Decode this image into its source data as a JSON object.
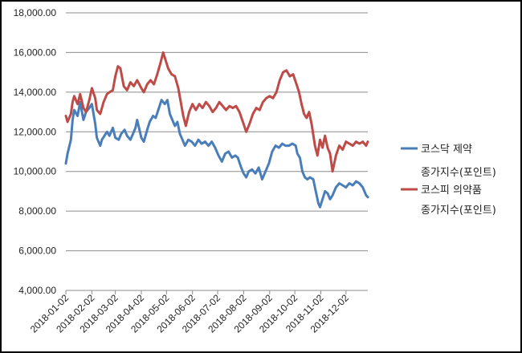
{
  "chart_data": {
    "type": "line",
    "ylim": [
      4000,
      18000
    ],
    "y_ticks": [
      "4,000.00",
      "6,000.00",
      "8,000.00",
      "10,000.00",
      "12,000.00",
      "14,000.00",
      "16,000.00",
      "18,000.00"
    ],
    "y_tick_values": [
      4000,
      6000,
      8000,
      10000,
      12000,
      14000,
      16000,
      18000
    ],
    "x_range": [
      "2018-01-02",
      "2018-12-28"
    ],
    "x_ticks": [
      "2018-01-02",
      "2018-02-02",
      "2018-03-02",
      "2018-04-02",
      "2018-05-02",
      "2018-06-02",
      "2018-07-02",
      "2018-08-02",
      "2018-09-02",
      "2018-10-02",
      "2018-11-02",
      "2018-12-02"
    ],
    "grid": "horizontal",
    "legend_position": "right",
    "series": [
      {
        "name": "코스닥 제약 종가지수(포인트)",
        "color": "#4a7ebb",
        "points": [
          [
            "2018-01-02",
            10400
          ],
          [
            "2018-01-04",
            10900
          ],
          [
            "2018-01-08",
            11600
          ],
          [
            "2018-01-10",
            12600
          ],
          [
            "2018-01-12",
            13100
          ],
          [
            "2018-01-16",
            12800
          ],
          [
            "2018-01-19",
            13500
          ],
          [
            "2018-01-23",
            12600
          ],
          [
            "2018-01-26",
            13000
          ],
          [
            "2018-01-30",
            13200
          ],
          [
            "2018-02-02",
            13400
          ],
          [
            "2018-02-06",
            12400
          ],
          [
            "2018-02-08",
            11700
          ],
          [
            "2018-02-12",
            11300
          ],
          [
            "2018-02-14",
            11600
          ],
          [
            "2018-02-20",
            12000
          ],
          [
            "2018-02-23",
            11800
          ],
          [
            "2018-02-27",
            12200
          ],
          [
            "2018-03-02",
            11700
          ],
          [
            "2018-03-06",
            11600
          ],
          [
            "2018-03-09",
            11900
          ],
          [
            "2018-03-13",
            12100
          ],
          [
            "2018-03-16",
            11800
          ],
          [
            "2018-03-20",
            11600
          ],
          [
            "2018-03-23",
            11900
          ],
          [
            "2018-03-26",
            12200
          ],
          [
            "2018-03-28",
            12600
          ],
          [
            "2018-04-02",
            11700
          ],
          [
            "2018-04-05",
            11500
          ],
          [
            "2018-04-09",
            12100
          ],
          [
            "2018-04-12",
            12500
          ],
          [
            "2018-04-16",
            12800
          ],
          [
            "2018-04-19",
            12700
          ],
          [
            "2018-04-23",
            13200
          ],
          [
            "2018-04-26",
            13600
          ],
          [
            "2018-04-30",
            13400
          ],
          [
            "2018-05-03",
            13600
          ],
          [
            "2018-05-06",
            12900
          ],
          [
            "2018-05-09",
            12600
          ],
          [
            "2018-05-12",
            12300
          ],
          [
            "2018-05-15",
            12500
          ],
          [
            "2018-05-18",
            11900
          ],
          [
            "2018-05-21",
            11600
          ],
          [
            "2018-05-24",
            11300
          ],
          [
            "2018-05-28",
            11600
          ],
          [
            "2018-06-01",
            11500
          ],
          [
            "2018-06-05",
            11300
          ],
          [
            "2018-06-09",
            11600
          ],
          [
            "2018-06-13",
            11400
          ],
          [
            "2018-06-17",
            11500
          ],
          [
            "2018-06-21",
            11300
          ],
          [
            "2018-06-25",
            11500
          ],
          [
            "2018-06-29",
            11200
          ],
          [
            "2018-07-03",
            10800
          ],
          [
            "2018-07-07",
            10500
          ],
          [
            "2018-07-11",
            10900
          ],
          [
            "2018-07-15",
            11000
          ],
          [
            "2018-07-19",
            10700
          ],
          [
            "2018-07-23",
            10800
          ],
          [
            "2018-07-26",
            10700
          ],
          [
            "2018-07-30",
            10200
          ],
          [
            "2018-08-02",
            9900
          ],
          [
            "2018-08-05",
            9700
          ],
          [
            "2018-08-08",
            10000
          ],
          [
            "2018-08-12",
            10100
          ],
          [
            "2018-08-16",
            9900
          ],
          [
            "2018-08-20",
            10200
          ],
          [
            "2018-08-24",
            9600
          ],
          [
            "2018-08-28",
            10000
          ],
          [
            "2018-09-01",
            10400
          ],
          [
            "2018-09-05",
            11000
          ],
          [
            "2018-09-09",
            11300
          ],
          [
            "2018-09-13",
            11200
          ],
          [
            "2018-09-17",
            11400
          ],
          [
            "2018-09-21",
            11300
          ],
          [
            "2018-09-25",
            11300
          ],
          [
            "2018-09-29",
            11400
          ],
          [
            "2018-10-03",
            11300
          ],
          [
            "2018-10-05",
            10900
          ],
          [
            "2018-10-08",
            10700
          ],
          [
            "2018-10-11",
            10000
          ],
          [
            "2018-10-14",
            9700
          ],
          [
            "2018-10-17",
            9600
          ],
          [
            "2018-10-20",
            9700
          ],
          [
            "2018-10-24",
            9600
          ],
          [
            "2018-10-27",
            9000
          ],
          [
            "2018-10-30",
            8400
          ],
          [
            "2018-11-01",
            8200
          ],
          [
            "2018-11-04",
            8600
          ],
          [
            "2018-11-07",
            9000
          ],
          [
            "2018-11-10",
            8900
          ],
          [
            "2018-11-13",
            8600
          ],
          [
            "2018-11-16",
            8800
          ],
          [
            "2018-11-20",
            9200
          ],
          [
            "2018-11-24",
            9400
          ],
          [
            "2018-11-28",
            9300
          ],
          [
            "2018-12-02",
            9200
          ],
          [
            "2018-12-06",
            9400
          ],
          [
            "2018-12-10",
            9300
          ],
          [
            "2018-12-14",
            9500
          ],
          [
            "2018-12-18",
            9400
          ],
          [
            "2018-12-22",
            9200
          ],
          [
            "2018-12-26",
            8800
          ],
          [
            "2018-12-28",
            8700
          ]
        ]
      },
      {
        "name": "코스피 의약품 종가지수(포인트)",
        "color": "#be4b48",
        "points": [
          [
            "2018-01-02",
            12800
          ],
          [
            "2018-01-04",
            12500
          ],
          [
            "2018-01-08",
            12900
          ],
          [
            "2018-01-10",
            13500
          ],
          [
            "2018-01-12",
            13800
          ],
          [
            "2018-01-16",
            13400
          ],
          [
            "2018-01-19",
            13900
          ],
          [
            "2018-01-23",
            13200
          ],
          [
            "2018-01-26",
            13000
          ],
          [
            "2018-01-30",
            13600
          ],
          [
            "2018-02-02",
            14200
          ],
          [
            "2018-02-06",
            13700
          ],
          [
            "2018-02-08",
            13100
          ],
          [
            "2018-02-12",
            12900
          ],
          [
            "2018-02-16",
            13500
          ],
          [
            "2018-02-20",
            13900
          ],
          [
            "2018-02-23",
            14000
          ],
          [
            "2018-02-27",
            14100
          ],
          [
            "2018-03-02",
            14800
          ],
          [
            "2018-03-05",
            15300
          ],
          [
            "2018-03-08",
            15200
          ],
          [
            "2018-03-12",
            14300
          ],
          [
            "2018-03-16",
            14100
          ],
          [
            "2018-03-20",
            14500
          ],
          [
            "2018-03-24",
            14300
          ],
          [
            "2018-03-28",
            14600
          ],
          [
            "2018-04-02",
            14200
          ],
          [
            "2018-04-05",
            14000
          ],
          [
            "2018-04-09",
            14400
          ],
          [
            "2018-04-13",
            14600
          ],
          [
            "2018-04-17",
            14400
          ],
          [
            "2018-04-21",
            14900
          ],
          [
            "2018-04-25",
            15500
          ],
          [
            "2018-04-28",
            16000
          ],
          [
            "2018-05-01",
            15600
          ],
          [
            "2018-05-04",
            15200
          ],
          [
            "2018-05-08",
            14900
          ],
          [
            "2018-05-12",
            14800
          ],
          [
            "2018-05-16",
            14200
          ],
          [
            "2018-05-19",
            13500
          ],
          [
            "2018-05-22",
            12800
          ],
          [
            "2018-05-25",
            12300
          ],
          [
            "2018-05-29",
            13000
          ],
          [
            "2018-06-02",
            13400
          ],
          [
            "2018-06-06",
            13100
          ],
          [
            "2018-06-10",
            13400
          ],
          [
            "2018-06-14",
            13200
          ],
          [
            "2018-06-18",
            13500
          ],
          [
            "2018-06-22",
            13300
          ],
          [
            "2018-06-26",
            13000
          ],
          [
            "2018-06-30",
            13200
          ],
          [
            "2018-07-04",
            13500
          ],
          [
            "2018-07-08",
            13300
          ],
          [
            "2018-07-12",
            13100
          ],
          [
            "2018-07-16",
            13300
          ],
          [
            "2018-07-20",
            13200
          ],
          [
            "2018-07-24",
            13300
          ],
          [
            "2018-07-28",
            13000
          ],
          [
            "2018-08-01",
            12500
          ],
          [
            "2018-08-05",
            12000
          ],
          [
            "2018-08-09",
            12400
          ],
          [
            "2018-08-13",
            12900
          ],
          [
            "2018-08-17",
            13200
          ],
          [
            "2018-08-21",
            13100
          ],
          [
            "2018-08-25",
            13500
          ],
          [
            "2018-08-29",
            13700
          ],
          [
            "2018-09-02",
            13800
          ],
          [
            "2018-09-06",
            13700
          ],
          [
            "2018-09-10",
            14000
          ],
          [
            "2018-09-14",
            14600
          ],
          [
            "2018-09-18",
            15000
          ],
          [
            "2018-09-22",
            15100
          ],
          [
            "2018-09-26",
            14800
          ],
          [
            "2018-09-30",
            14900
          ],
          [
            "2018-10-04",
            14400
          ],
          [
            "2018-10-07",
            14000
          ],
          [
            "2018-10-10",
            13400
          ],
          [
            "2018-10-13",
            12900
          ],
          [
            "2018-10-16",
            12700
          ],
          [
            "2018-10-19",
            13000
          ],
          [
            "2018-10-22",
            12400
          ],
          [
            "2018-10-26",
            11300
          ],
          [
            "2018-10-29",
            10800
          ],
          [
            "2018-11-01",
            11600
          ],
          [
            "2018-11-04",
            11200
          ],
          [
            "2018-11-07",
            11800
          ],
          [
            "2018-11-10",
            11200
          ],
          [
            "2018-11-13",
            10900
          ],
          [
            "2018-11-16",
            10000
          ],
          [
            "2018-11-20",
            10800
          ],
          [
            "2018-11-24",
            11300
          ],
          [
            "2018-11-28",
            11100
          ],
          [
            "2018-12-02",
            11500
          ],
          [
            "2018-12-06",
            11400
          ],
          [
            "2018-12-10",
            11300
          ],
          [
            "2018-12-14",
            11500
          ],
          [
            "2018-12-18",
            11400
          ],
          [
            "2018-12-22",
            11500
          ],
          [
            "2018-12-26",
            11300
          ],
          [
            "2018-12-28",
            11500
          ]
        ]
      }
    ],
    "legend": [
      {
        "line1": "코스닥 제약",
        "line2": "종가지수(포인트)"
      },
      {
        "line1": "코스피 의약품",
        "line2": "종가지수(포인트)"
      }
    ]
  }
}
